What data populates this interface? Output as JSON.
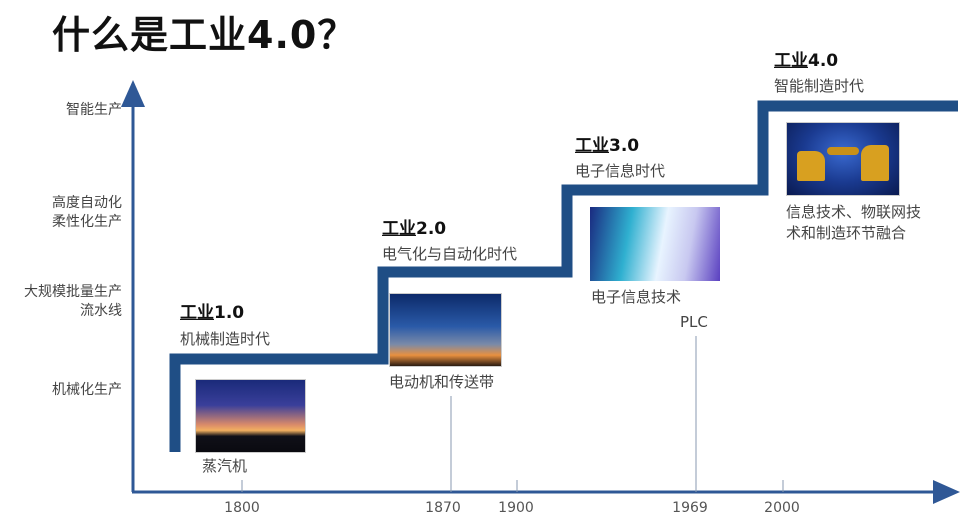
{
  "title": "什么是工业4.0？",
  "y_axis_labels": [
    [
      "智能生产"
    ],
    [
      "高度自动化",
      "柔性化生产"
    ],
    [
      "大规模批量生产",
      "流水线"
    ],
    [
      "机械化生产"
    ]
  ],
  "x_axis_labels": [
    "1800",
    "1870",
    "1900",
    "1969",
    "2000"
  ],
  "eras": [
    {
      "prefix": "工业",
      "number": "1.0",
      "subtitle": "机械制造时代",
      "caption": [
        "蒸汽机"
      ],
      "image": "smokestack-sunset-photo"
    },
    {
      "prefix": "工业",
      "number": "2.0",
      "subtitle": "电气化与自动化时代",
      "caption": [
        "电动机和传送带"
      ],
      "image": "power-tower-photo"
    },
    {
      "prefix": "工业",
      "number": "3.0",
      "subtitle": "电子信息时代",
      "caption": [
        "电子信息技术",
        "PLC"
      ],
      "image": "electronic-tech-photo"
    },
    {
      "prefix": "工业",
      "number": "4.0",
      "subtitle": "智能制造时代",
      "caption": [
        "信息技术、物联网技",
        "术和制造环节融合"
      ],
      "image": "industrial-robots-photo"
    }
  ],
  "colors": {
    "staircase": "#1f4e85",
    "axis": "#2f5896"
  }
}
